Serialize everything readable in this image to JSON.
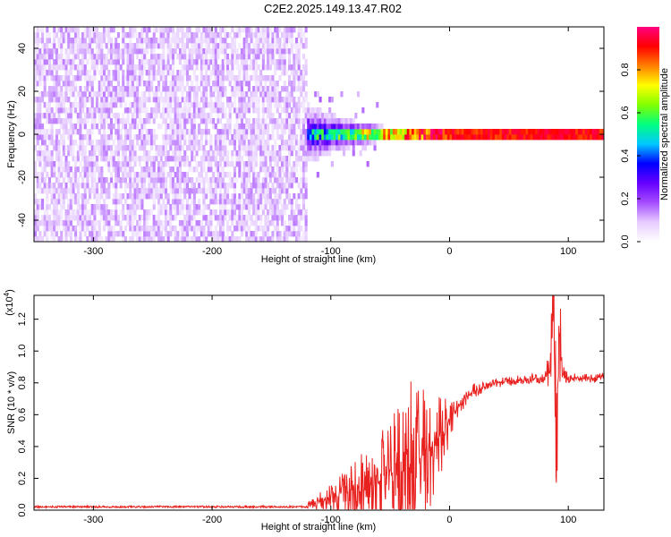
{
  "title": "C2E2.2025.149.13.47.R02",
  "chart_data": [
    {
      "type": "heatmap",
      "xlabel": "Height of straight line (km)",
      "ylabel": "Frequency (Hz)",
      "xlim": [
        -350,
        130
      ],
      "ylim": [
        -50,
        50
      ],
      "xticks": [
        -300,
        -200,
        -100,
        0,
        100
      ],
      "yticks": [
        -40,
        -20,
        0,
        20,
        40
      ],
      "noise_region_x": [
        -350,
        -120
      ],
      "signal_band_hz": [
        -3,
        3
      ],
      "colorbar": {
        "label": "Normalized spectral amplitude",
        "range": [
          0,
          1
        ],
        "ticks": [
          "0.0",
          "0.2",
          "0.4",
          "0.6",
          "0.8"
        ],
        "colors": [
          "#ffffff",
          "#e6ccff",
          "#a64dff",
          "#6600ff",
          "#0000ff",
          "#00c8ff",
          "#00ff80",
          "#80ff00",
          "#ffff00",
          "#ff8000",
          "#ff0000",
          "#ff0080"
        ]
      }
    },
    {
      "type": "line",
      "xlabel": "Height of straight line (km)",
      "ylabel": "SNR (10 * v/v)",
      "y_multiplier": "(x10",
      "y_multiplier_exp": "4",
      "y_multiplier_close": ")",
      "xlim": [
        -350,
        130
      ],
      "ylim": [
        0,
        1.35
      ],
      "xticks": [
        -300,
        -200,
        -100,
        0,
        100
      ],
      "yticks": [
        "0.0",
        "0.2",
        "0.4",
        "0.6",
        "0.8",
        "1.0",
        "1.2"
      ],
      "color": "#e8211f",
      "series": [
        {
          "x": [
            -350,
            -300,
            -250,
            -200,
            -150,
            -120,
            -100,
            -80,
            -60,
            -40,
            -20,
            -10,
            0,
            10,
            20,
            40,
            60,
            80,
            85,
            88,
            90,
            92,
            95,
            100,
            110,
            130
          ],
          "y": [
            0.02,
            0.02,
            0.02,
            0.02,
            0.02,
            0.03,
            0.08,
            0.12,
            0.18,
            0.25,
            0.35,
            0.45,
            0.56,
            0.68,
            0.75,
            0.8,
            0.82,
            0.83,
            0.9,
            1.3,
            0.1,
            1.2,
            0.85,
            0.83,
            0.83,
            0.83
          ]
        }
      ],
      "spike_amplitude": [
        [
          -120,
          0.02
        ],
        [
          -100,
          0.1
        ],
        [
          -80,
          0.18
        ],
        [
          -60,
          0.3
        ],
        [
          -40,
          0.45
        ],
        [
          -30,
          0.55
        ],
        [
          -20,
          0.45
        ],
        [
          -10,
          0.3
        ],
        [
          0,
          0.15
        ],
        [
          10,
          0.06
        ],
        [
          30,
          0.03
        ],
        [
          80,
          0.03
        ],
        [
          85,
          0.15
        ],
        [
          88,
          0.5
        ],
        [
          90,
          0.6
        ],
        [
          92,
          0.5
        ],
        [
          95,
          0.1
        ],
        [
          100,
          0.03
        ],
        [
          130,
          0.03
        ]
      ]
    }
  ]
}
